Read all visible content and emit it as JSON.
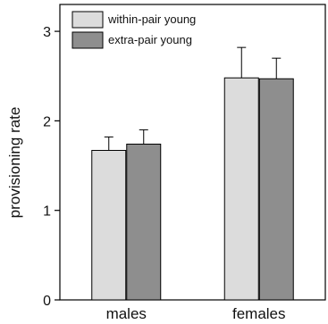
{
  "chart_data": {
    "type": "bar",
    "title": "",
    "xlabel": "",
    "ylabel": "provisioning rate",
    "categories": [
      "males",
      "females"
    ],
    "ylim": [
      0,
      3.3
    ],
    "yticks": [
      "0",
      "1",
      "2",
      "3"
    ],
    "grid": false,
    "legend_position": "top-left",
    "series": [
      {
        "name": "within-pair young",
        "values": [
          1.67,
          2.48
        ],
        "errors": [
          0.15,
          0.34
        ],
        "color": "#dcdcdc"
      },
      {
        "name": "extra-pair young",
        "values": [
          1.74,
          2.47
        ],
        "errors": [
          0.16,
          0.23
        ],
        "color": "#8e8e8e"
      }
    ]
  }
}
